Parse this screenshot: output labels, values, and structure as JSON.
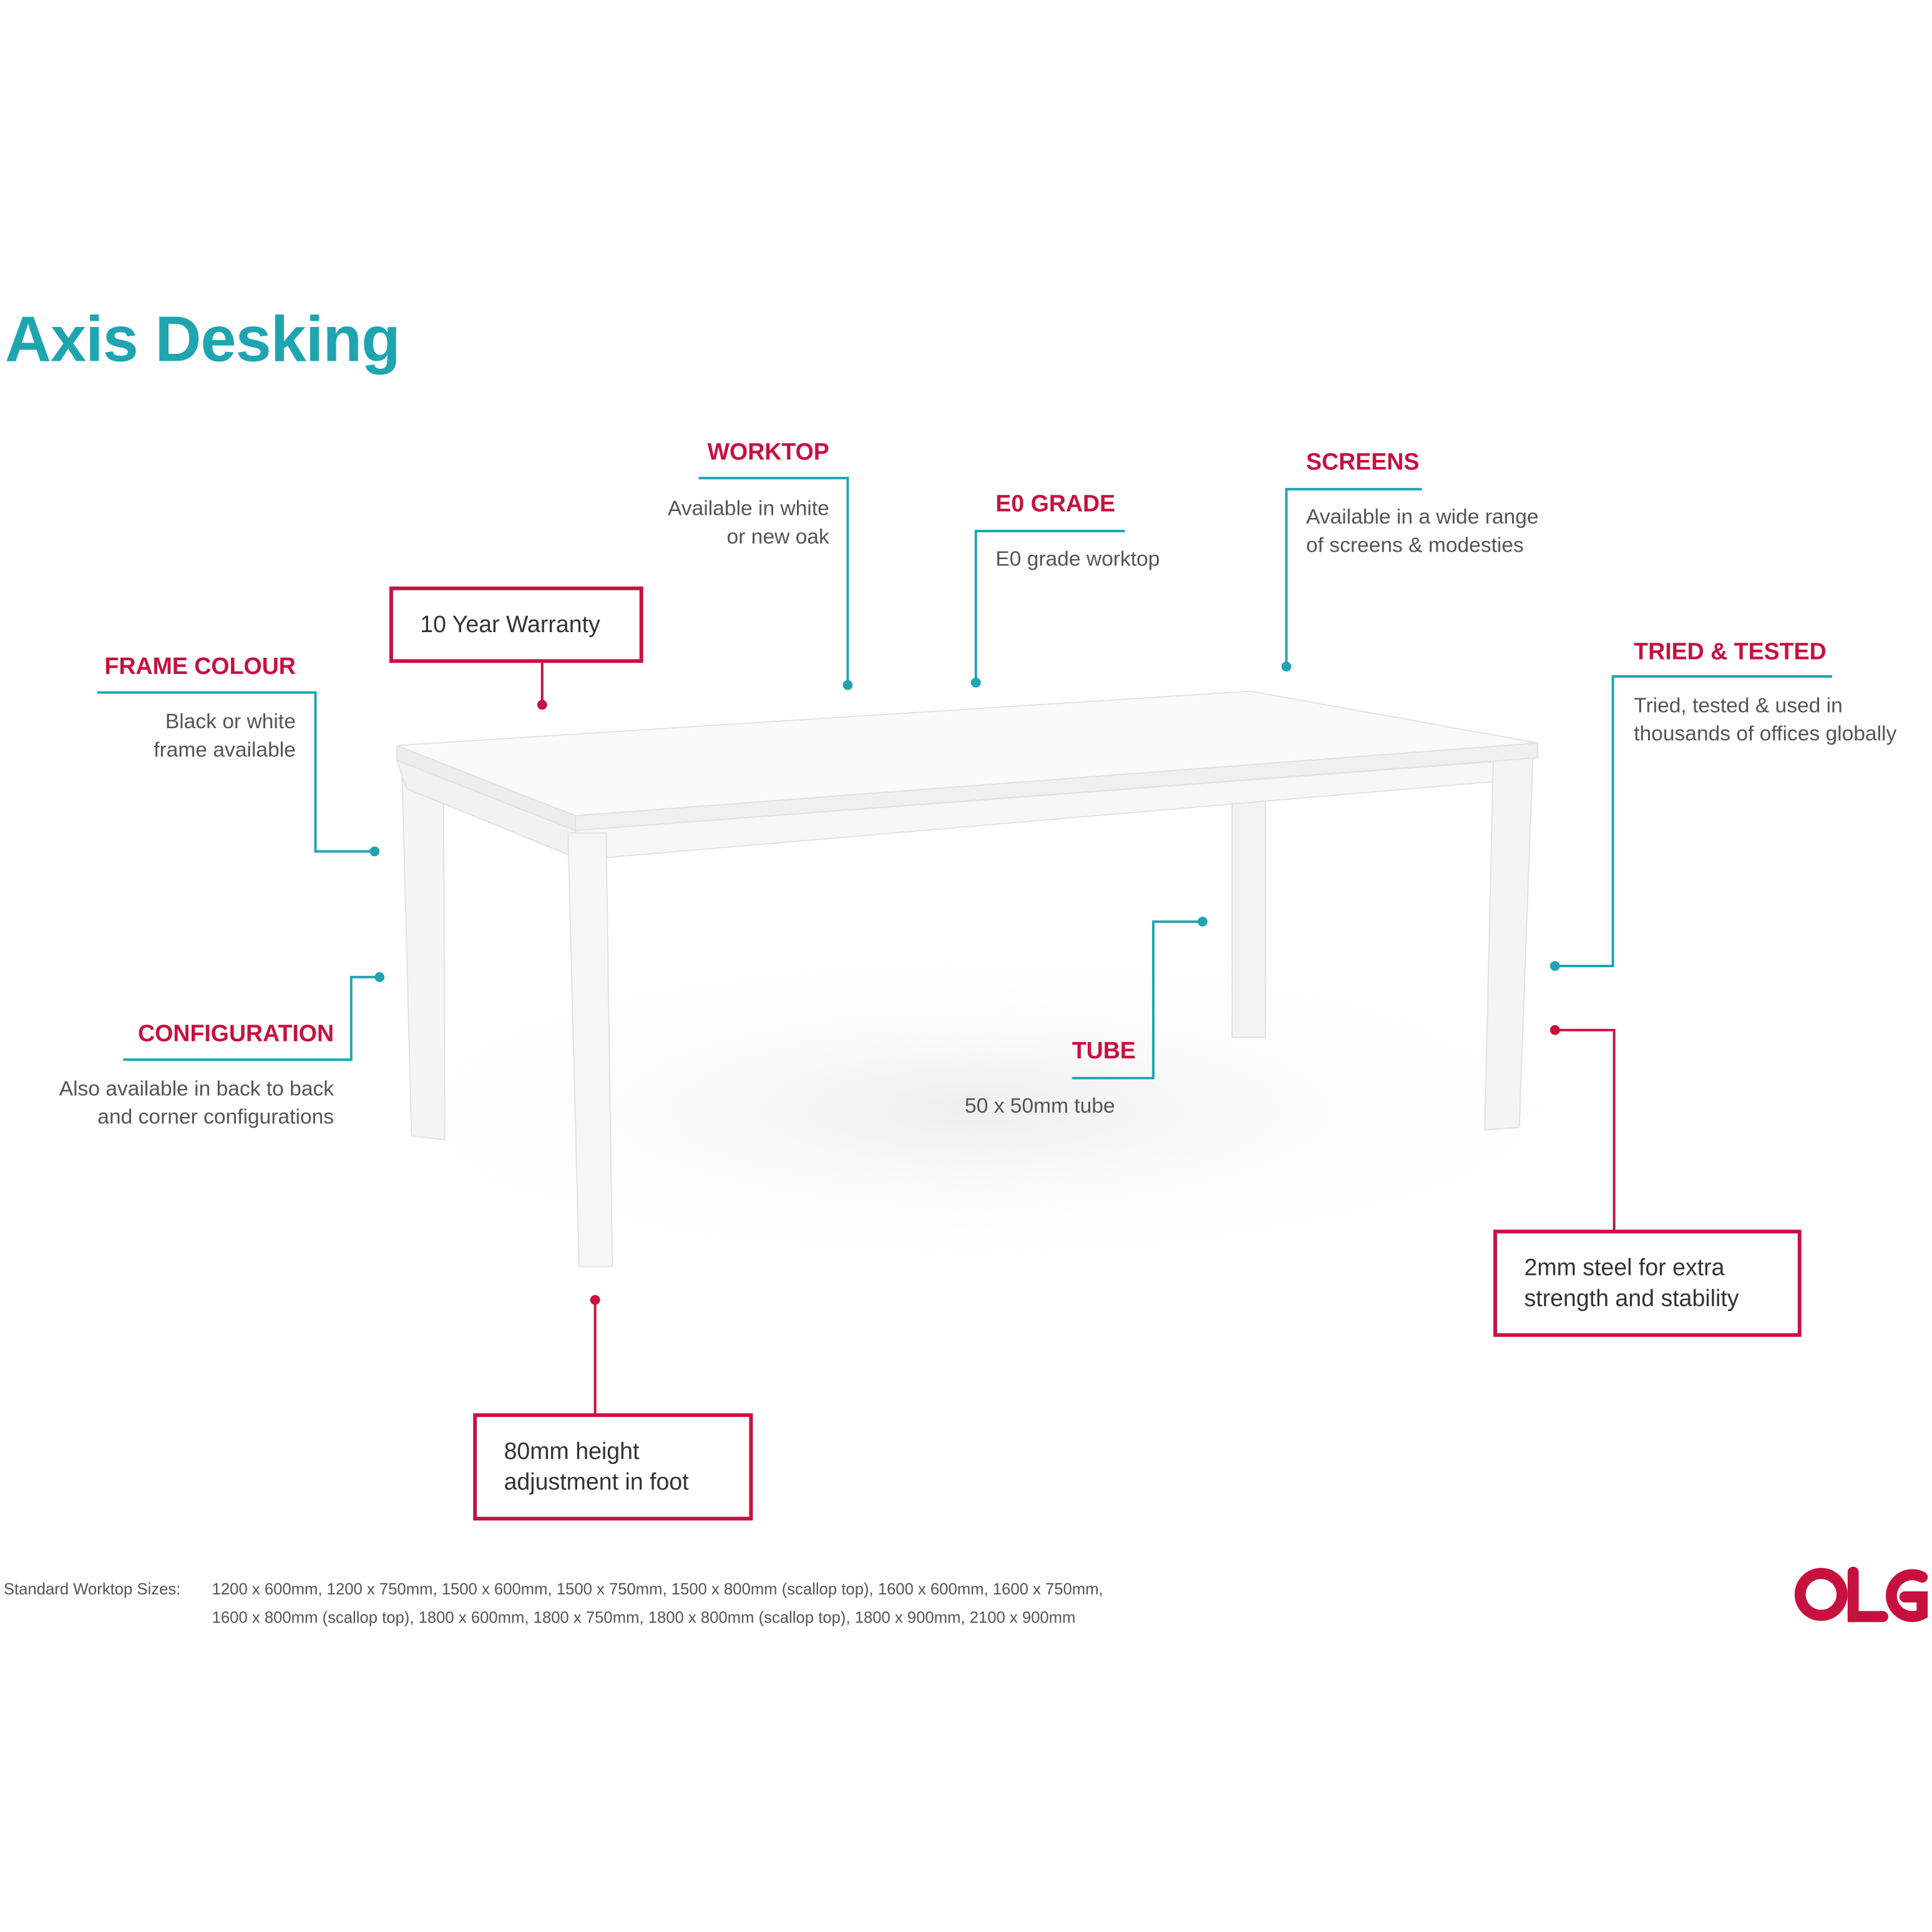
{
  "title": "Axis Desking",
  "colors": {
    "teal": "#1fa5b0",
    "crimson": "#c8103e"
  },
  "callouts": {
    "worktop": {
      "label": "WORKTOP",
      "lines": [
        "Available in white",
        "or new oak"
      ]
    },
    "e0_grade": {
      "label": "E0 GRADE",
      "lines": [
        "E0 grade worktop"
      ]
    },
    "screens": {
      "label": "SCREENS",
      "lines": [
        "Available in a wide range",
        "of screens & modesties"
      ]
    },
    "tried_tested": {
      "label": "TRIED & TESTED",
      "lines": [
        "Tried, tested & used in",
        "thousands of offices globally"
      ]
    },
    "frame_colour": {
      "label": "FRAME COLOUR",
      "lines": [
        "Black or white",
        "frame available"
      ]
    },
    "configuration": {
      "label": "CONFIGURATION",
      "lines": [
        "Also available in back to back",
        "and corner configurations"
      ]
    },
    "tube": {
      "label": "TUBE",
      "lines": [
        "50 x 50mm tube"
      ]
    }
  },
  "boxes": {
    "warranty": [
      "10 Year Warranty"
    ],
    "foot": [
      "80mm height",
      "adjustment in foot"
    ],
    "steel": [
      "2mm steel for extra",
      "strength and stability"
    ]
  },
  "footer": {
    "label": "Standard Worktop Sizes:",
    "line1": "1200 x 600mm, 1200 x 750mm, 1500 x 600mm, 1500 x 750mm, 1500 x 800mm (scallop top), 1600 x 600mm, 1600 x 750mm,",
    "line2": "1600 x 800mm (scallop top), 1800 x 600mm, 1800 x 750mm, 1800 x 800mm (scallop top), 1800 x 900mm, 2100 x 900mm"
  },
  "logo": "OLG"
}
